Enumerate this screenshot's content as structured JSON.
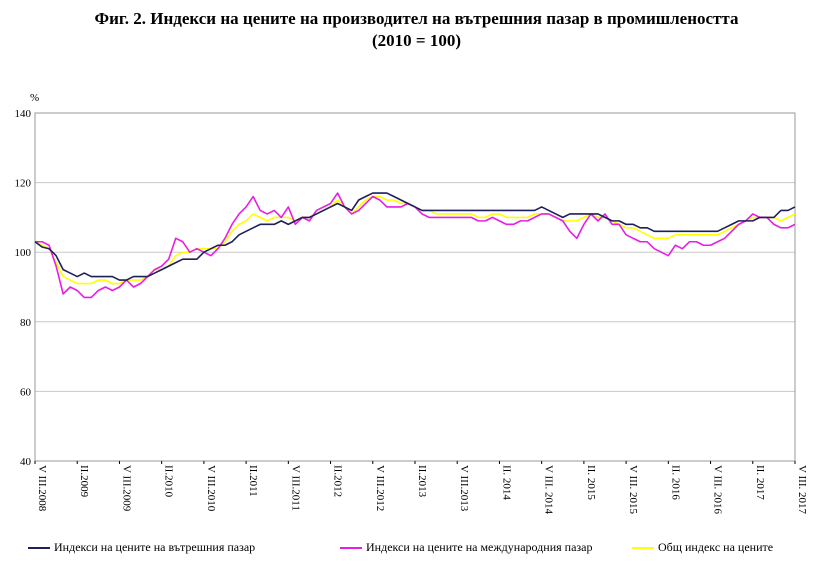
{
  "chart_data": {
    "type": "line",
    "title": "Фиг. 2. Индекси на цените на производител на вътрешния пазар в промишлеността",
    "subtitle": "(2010 = 100)",
    "ylabel": "%",
    "ylim": [
      40,
      140
    ],
    "yticks": [
      40,
      60,
      80,
      100,
      120,
      140
    ],
    "grid": true,
    "legend_position": "bottom",
    "x_tick_labels": [
      "V III.2008",
      "II.2009",
      "V III.2009",
      "II.2010",
      "V III.2010",
      "II.2011",
      "V III.2011",
      "II.2012",
      "V III.2012",
      "II.2013",
      "V III.2013",
      "II. 2014",
      "V III. 2014",
      "II. 2015",
      "V III. 2015",
      "II. 2016",
      "V III. 2016",
      "II. 2017",
      "V III. 2017"
    ],
    "x_tick_month_index": [
      0,
      6,
      12,
      18,
      24,
      30,
      36,
      42,
      48,
      54,
      60,
      66,
      72,
      78,
      84,
      90,
      96,
      102,
      108
    ],
    "series": [
      {
        "name": "Индекси на цените на вътрешния пазар",
        "color": "#1f1f5c",
        "values": [
          103,
          101.5,
          101,
          99,
          95,
          94,
          93,
          94,
          93,
          93,
          93,
          93,
          92,
          92,
          93,
          93,
          93,
          94,
          95,
          96,
          97,
          98,
          98,
          98,
          100,
          101,
          102,
          102,
          103,
          105,
          106,
          107,
          108,
          108,
          108,
          109,
          108,
          109,
          110,
          110,
          111,
          112,
          113,
          114,
          113,
          112,
          115,
          116,
          117,
          117,
          117,
          116,
          115,
          114,
          113,
          112,
          112,
          112,
          112,
          112,
          112,
          112,
          112,
          112,
          112,
          112,
          112,
          112,
          112,
          112,
          112,
          112,
          113,
          112,
          111,
          110,
          111,
          111,
          111,
          111,
          111,
          110,
          109,
          109,
          108,
          108,
          107,
          107,
          106,
          106,
          106,
          106,
          106,
          106,
          106,
          106,
          106,
          106,
          107,
          108,
          109,
          109,
          109,
          110,
          110,
          110,
          112,
          112,
          113
        ]
      },
      {
        "name": "Индекси на цените на международния пазар",
        "color": "#e61ee6",
        "values": [
          103,
          103,
          102,
          96,
          88,
          90,
          89,
          87,
          87,
          89,
          90,
          89,
          90,
          92,
          90,
          91,
          93,
          95,
          96,
          98,
          104,
          103,
          100,
          101,
          100,
          99,
          101,
          104,
          108,
          111,
          113,
          116,
          112,
          111,
          112,
          110,
          113,
          108,
          110,
          109,
          112,
          113,
          114,
          117,
          113,
          111,
          112,
          114,
          116,
          115,
          113,
          113,
          113,
          114,
          113,
          111,
          110,
          110,
          110,
          110,
          110,
          110,
          110,
          109,
          109,
          110,
          109,
          108,
          108,
          109,
          109,
          110,
          111,
          111,
          110,
          109,
          106,
          104,
          108,
          111,
          109,
          111,
          108,
          108,
          105,
          104,
          103,
          103,
          101,
          100,
          99,
          102,
          101,
          103,
          103,
          102,
          102,
          103,
          104,
          106,
          108,
          109,
          111,
          110,
          110,
          108,
          107,
          107,
          108
        ]
      },
      {
        "name": "Общ индекс на цените",
        "color": "#ffff00",
        "values": [
          103,
          102,
          101,
          97,
          93,
          92,
          91,
          91,
          91,
          92,
          92,
          91,
          91,
          92,
          92,
          92,
          93,
          95,
          95,
          96,
          99,
          100,
          100,
          101,
          101,
          101,
          101,
          103,
          106,
          108,
          109,
          111,
          110,
          109,
          110,
          110,
          110,
          109,
          110,
          110,
          111,
          112,
          113,
          115,
          113,
          111,
          113,
          115,
          116,
          116,
          115,
          115,
          114,
          114,
          113,
          112,
          112,
          111,
          111,
          111,
          111,
          111,
          111,
          110,
          110,
          111,
          111,
          110,
          110,
          110,
          110,
          111,
          111,
          111,
          110,
          109,
          109,
          109,
          110,
          111,
          110,
          110,
          109,
          108,
          107,
          107,
          106,
          105,
          104,
          104,
          104,
          105,
          105,
          105,
          105,
          105,
          105,
          105,
          106,
          107,
          108,
          109,
          110,
          110,
          110,
          110,
          109,
          110,
          111
        ]
      }
    ]
  }
}
